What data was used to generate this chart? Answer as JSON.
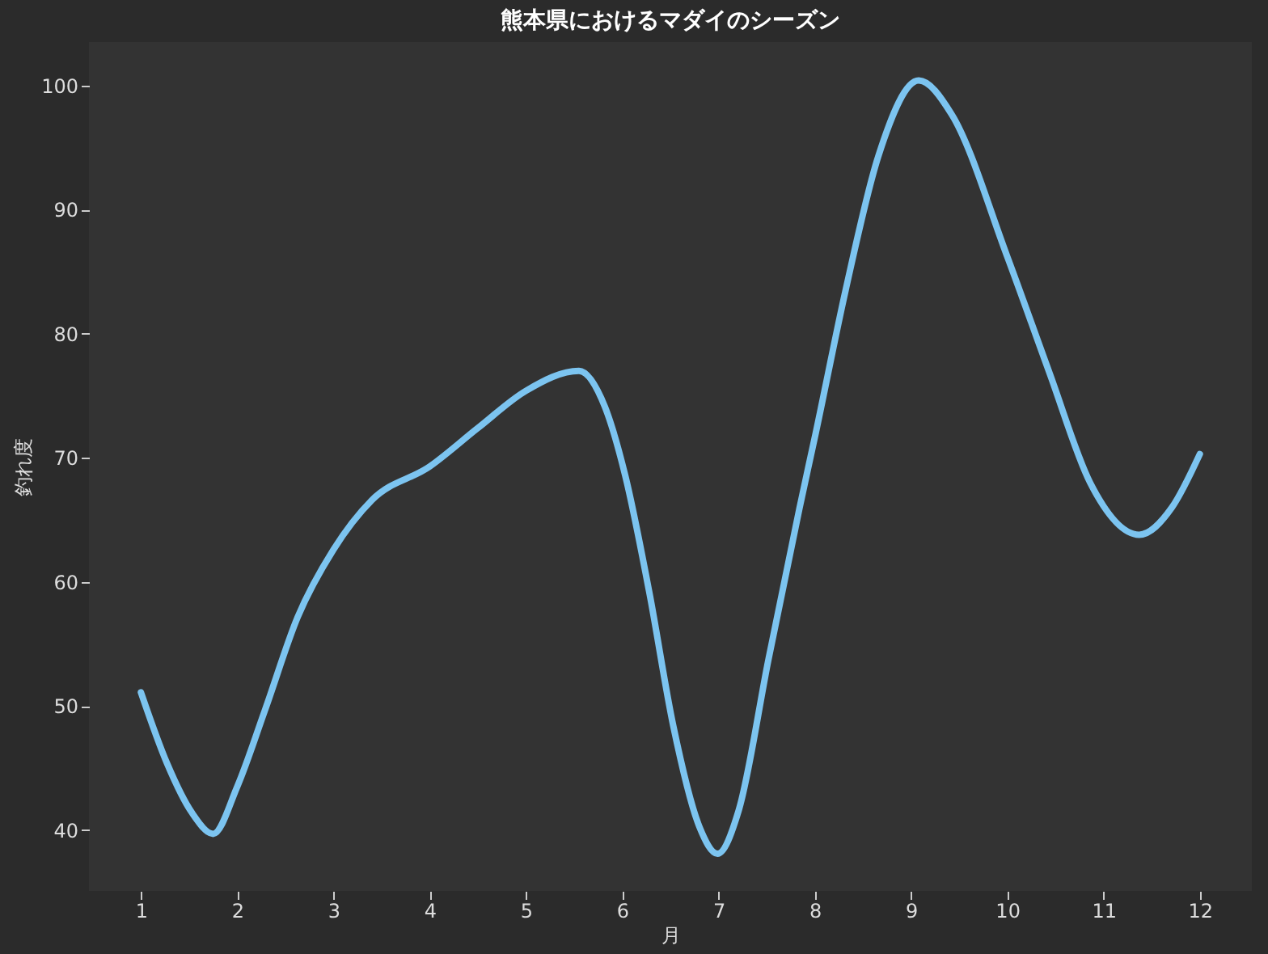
{
  "chart_data": {
    "type": "line",
    "title": "熊本県におけるマダイのシーズン",
    "xlabel": "月",
    "ylabel": "釣れ度",
    "xlim": [
      0.46,
      12.54
    ],
    "xticks": [
      1,
      2,
      3,
      4,
      5,
      6,
      7,
      8,
      9,
      10,
      11,
      12
    ],
    "ylim": [
      35.1,
      103.5
    ],
    "yticks": [
      40,
      50,
      60,
      70,
      80,
      90,
      100
    ],
    "grid": false,
    "legend": false,
    "line_style": "solid",
    "marker": "none",
    "series": [
      {
        "color": "#7cc4f0",
        "x": [
          1,
          1.27,
          1.53,
          1.75,
          2,
          2.29,
          2.63,
          3,
          3.4,
          4,
          4.5,
          5,
          5.55,
          5.82,
          6.03,
          6.28,
          6.53,
          6.8,
          6.99,
          7.21,
          7.52,
          7.84,
          8.01,
          8.32,
          8.66,
          9.08,
          9.42,
          10,
          10.44,
          10.86,
          11.37,
          11.71,
          12
        ],
        "values": [
          51.1,
          45.4,
          41.4,
          39.7,
          43.5,
          49.7,
          57.2,
          62.6,
          66.6,
          69.3,
          72.4,
          75.4,
          77,
          74.1,
          68.6,
          59.2,
          48.4,
          40.3,
          38.1,
          41.6,
          53.8,
          65.9,
          72,
          83.5,
          94.3,
          100.4,
          97.7,
          86.2,
          76.8,
          68,
          63.8,
          66,
          70.3
        ]
      }
    ]
  }
}
